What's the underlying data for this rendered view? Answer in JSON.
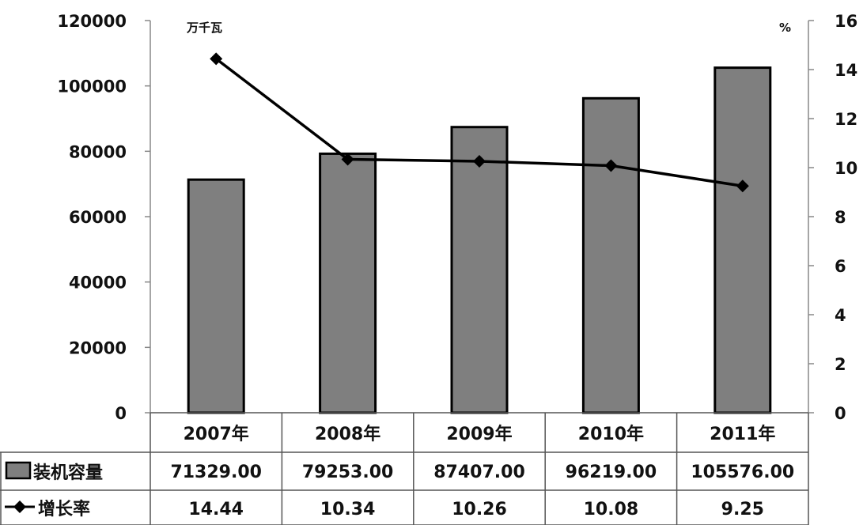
{
  "chart_data": {
    "type": "bar",
    "categories": [
      "2007年",
      "2008年",
      "2009年",
      "2010年",
      "2011年"
    ],
    "series": [
      {
        "name": "装机容量",
        "type": "bar",
        "axis": "left",
        "values": [
          71329.0,
          79253.0,
          87407.0,
          96219.0,
          105576.0
        ],
        "display": [
          "71329.00",
          "79253.00",
          "87407.00",
          "96219.00",
          "105576.00"
        ]
      },
      {
        "name": "增长率",
        "type": "line",
        "axis": "right",
        "values": [
          14.44,
          10.34,
          10.26,
          10.08,
          9.25
        ],
        "display": [
          "14.44",
          "10.34",
          "10.26",
          "10.08",
          "9.25"
        ]
      }
    ],
    "left_axis": {
      "unit": "万千瓦",
      "min": 0,
      "max": 120000,
      "ticks": [
        0,
        20000,
        40000,
        60000,
        80000,
        100000,
        120000
      ]
    },
    "right_axis": {
      "unit": "%",
      "min": 0,
      "max": 16,
      "ticks": [
        0,
        2,
        4,
        6,
        8,
        10,
        12,
        14,
        16
      ]
    },
    "grid": false,
    "legend": "data-table",
    "colors": {
      "bar_fill": "#7f7f7f",
      "bar_stroke": "#000000",
      "line": "#000000",
      "axis": "#888888"
    }
  }
}
